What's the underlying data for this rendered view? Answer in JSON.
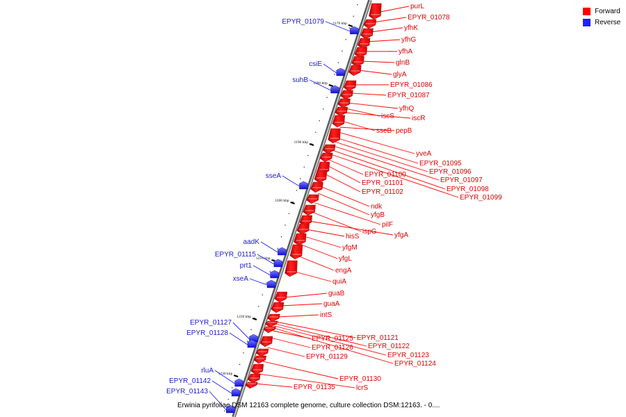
{
  "legend": {
    "forward_label": "Forward",
    "reverse_label": "Reverse",
    "forward_color": "#ff0000",
    "reverse_color": "#1f1fff"
  },
  "caption": "Erwinia pyrifoliae DSM 12163 complete genome, culture collection DSM:12163. - 0....",
  "axis": {
    "tick_labels": [
      "1170 kbp",
      "1180 kbp",
      "1190 kbp",
      "1200 kbp",
      "1210 kbp",
      "1220 kbp",
      "1230 kbp"
    ]
  },
  "forward_genes": [
    "purL",
    "EPYR_01078",
    "yfhK",
    "yfhG",
    "yfhA",
    "glnB",
    "glyA",
    "EPYR_01086",
    "EPYR_01087",
    "yfhQ",
    "iscS",
    "iscR",
    "sseB",
    "pepB",
    "yveA",
    "EPYR_01095",
    "EPYR_01096",
    "EPYR_01097",
    "EPYR_01098",
    "EPYR_01099",
    "EPYR_01100",
    "EPYR_01101",
    "EPYR_01102",
    "ndk",
    "yfgB",
    "pilF",
    "ispG",
    "yfgA",
    "hisS",
    "yfgM",
    "yfgL",
    "engA",
    "quiA",
    "guaB",
    "guaA",
    "intS",
    "EPYR_01121",
    "EPYR_01122",
    "EPYR_01123",
    "EPYR_01124",
    "EPYR_01125",
    "EPYR_01126",
    "EPYR_01129",
    "EPYR_01130",
    "lcrS",
    "EPYR_01135"
  ],
  "reverse_genes": [
    "EPYR_01079",
    "csiE",
    "suhB",
    "sseA",
    "aadK",
    "EPYR_01115",
    "prt1",
    "xseA",
    "EPYR_01127",
    "EPYR_01128",
    "rluA",
    "EPYR_01142",
    "EPYR_01143"
  ]
}
